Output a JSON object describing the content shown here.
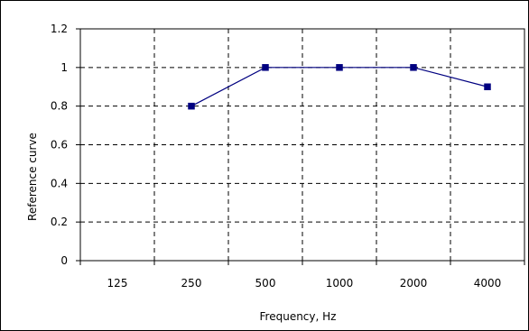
{
  "chart_data": {
    "type": "line",
    "title": "",
    "xlabel": "Frequency, Hz",
    "ylabel": "Reference curve",
    "categories": [
      "125",
      "250",
      "500",
      "1000",
      "2000",
      "4000"
    ],
    "series": [
      {
        "values": [
          null,
          0.8,
          1,
          1,
          1,
          0.9
        ]
      }
    ],
    "ylim": [
      0,
      1.2
    ],
    "yticks": [
      "0",
      "0.2",
      "0.4",
      "0.6",
      "0.8",
      "1",
      "1.2"
    ],
    "grid": true,
    "legend": "none",
    "colors": {
      "series": "#000080",
      "grid": "#000000",
      "axis": "#000000",
      "border": "#000000",
      "background": "#ffffff"
    }
  }
}
